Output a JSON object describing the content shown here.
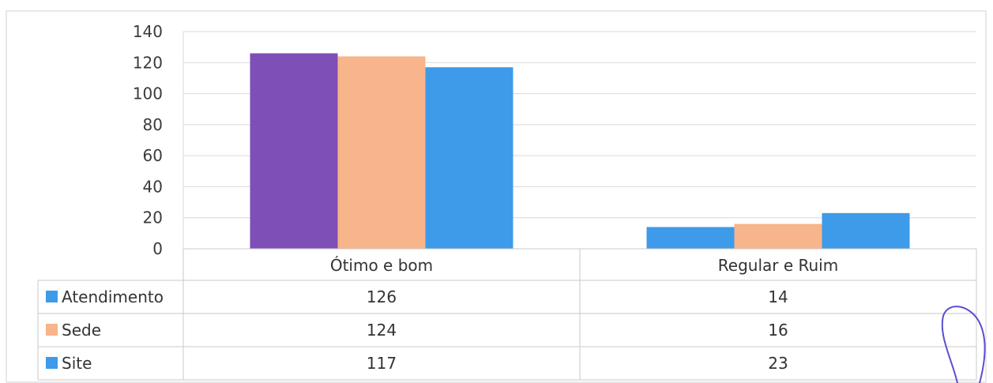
{
  "chart_data": {
    "type": "bar",
    "categories": [
      "Ótimo e bom",
      "Regular e Ruim"
    ],
    "series": [
      {
        "name": "Atendimento",
        "values": [
          126,
          14
        ],
        "bar_color": "#7e4fb7",
        "legend_color": "#3d9be9"
      },
      {
        "name": "Sede",
        "values": [
          124,
          16
        ],
        "bar_color": "#f8b48a",
        "legend_color": "#f8b48a"
      },
      {
        "name": "Site",
        "values": [
          117,
          23
        ],
        "bar_color": "#3d9be9",
        "legend_color": "#3d9be9"
      }
    ],
    "ylim": [
      0,
      140
    ],
    "yticks": [
      0,
      20,
      40,
      60,
      80,
      100,
      120,
      140
    ],
    "grid": true,
    "legend": "data-table-left",
    "data_table": true
  },
  "colors": {
    "grid": "#d9d9d9",
    "table_border": "#c8c8c8",
    "frame": "#d0d0d0",
    "text": "#333333",
    "annotation_ink": "#5a4fcf"
  }
}
